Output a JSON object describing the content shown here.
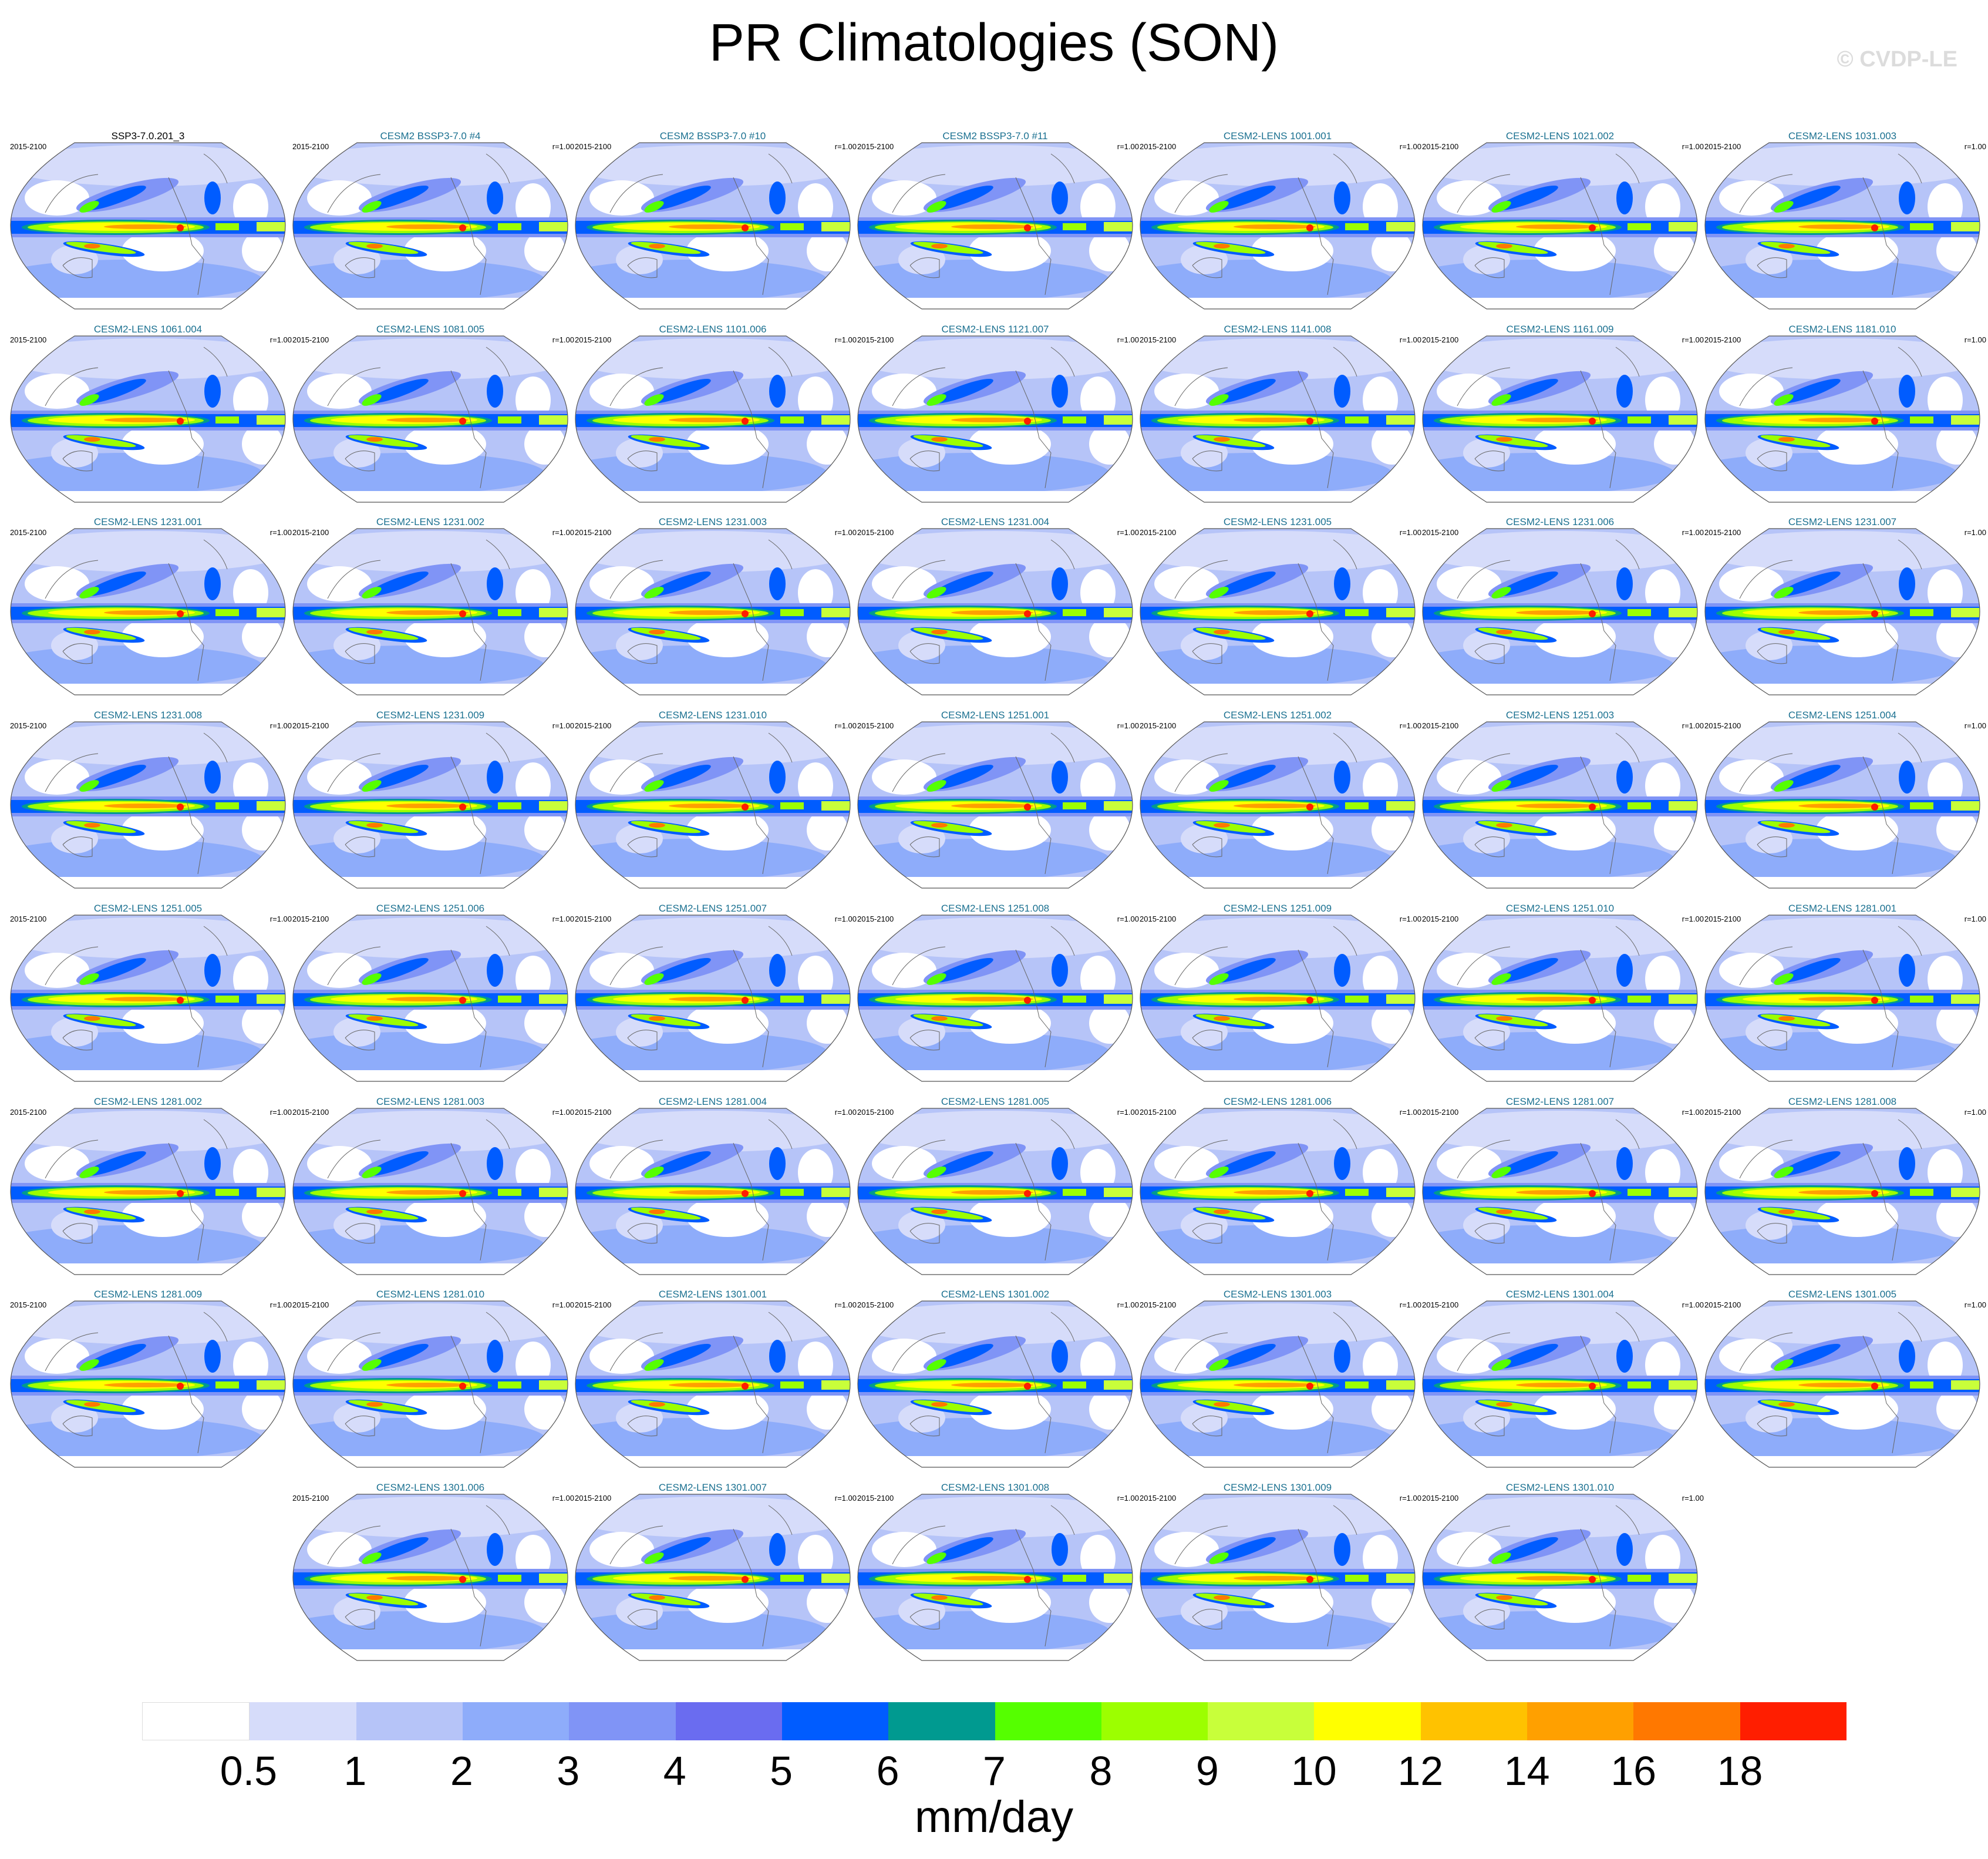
{
  "chart_data": {
    "type": "heatmap",
    "title": "PR Climatologies (SON)",
    "watermark": "© CVDP-LE",
    "period": "2015-2100",
    "units": "mm/day",
    "colorbar": {
      "levels": [
        "0.5",
        "1",
        "2",
        "3",
        "4",
        "5",
        "6",
        "7",
        "8",
        "9",
        "10",
        "12",
        "14",
        "16",
        "18"
      ],
      "colors": [
        "#ffffff",
        "#d6dcfa",
        "#b6c4f8",
        "#8eacfa",
        "#8094f6",
        "#6a6cf0",
        "#005cff",
        "#009a90",
        "#55ff00",
        "#9cff00",
        "#c8ff3a",
        "#ffff00",
        "#ffc200",
        "#ffa000",
        "#ff7800",
        "#ff1e00"
      ]
    },
    "panels": [
      {
        "title": "SSP3-7.0.201_3",
        "r": ""
      },
      {
        "title": "CESM2 BSSP3-7.0 #4",
        "r": "r=1.00"
      },
      {
        "title": "CESM2 BSSP3-7.0 #10",
        "r": "r=1.00"
      },
      {
        "title": "CESM2 BSSP3-7.0 #11",
        "r": "r=1.00"
      },
      {
        "title": "CESM2-LENS 1001.001",
        "r": "r=1.00"
      },
      {
        "title": "CESM2-LENS 1021.002",
        "r": "r=1.00"
      },
      {
        "title": "CESM2-LENS 1031.003",
        "r": "r=1.00"
      },
      {
        "title": "CESM2-LENS 1061.004",
        "r": "r=1.00"
      },
      {
        "title": "CESM2-LENS 1081.005",
        "r": "r=1.00"
      },
      {
        "title": "CESM2-LENS 1101.006",
        "r": "r=1.00"
      },
      {
        "title": "CESM2-LENS 1121.007",
        "r": "r=1.00"
      },
      {
        "title": "CESM2-LENS 1141.008",
        "r": "r=1.00"
      },
      {
        "title": "CESM2-LENS 1161.009",
        "r": "r=1.00"
      },
      {
        "title": "CESM2-LENS 1181.010",
        "r": "r=1.00"
      },
      {
        "title": "CESM2-LENS 1231.001",
        "r": "r=1.00"
      },
      {
        "title": "CESM2-LENS 1231.002",
        "r": "r=1.00"
      },
      {
        "title": "CESM2-LENS 1231.003",
        "r": "r=1.00"
      },
      {
        "title": "CESM2-LENS 1231.004",
        "r": "r=1.00"
      },
      {
        "title": "CESM2-LENS 1231.005",
        "r": "r=1.00"
      },
      {
        "title": "CESM2-LENS 1231.006",
        "r": "r=1.00"
      },
      {
        "title": "CESM2-LENS 1231.007",
        "r": "r=1.00"
      },
      {
        "title": "CESM2-LENS 1231.008",
        "r": "r=1.00"
      },
      {
        "title": "CESM2-LENS 1231.009",
        "r": "r=1.00"
      },
      {
        "title": "CESM2-LENS 1231.010",
        "r": "r=1.00"
      },
      {
        "title": "CESM2-LENS 1251.001",
        "r": "r=1.00"
      },
      {
        "title": "CESM2-LENS 1251.002",
        "r": "r=1.00"
      },
      {
        "title": "CESM2-LENS 1251.003",
        "r": "r=1.00"
      },
      {
        "title": "CESM2-LENS 1251.004",
        "r": "r=1.00"
      },
      {
        "title": "CESM2-LENS 1251.005",
        "r": "r=1.00"
      },
      {
        "title": "CESM2-LENS 1251.006",
        "r": "r=1.00"
      },
      {
        "title": "CESM2-LENS 1251.007",
        "r": "r=1.00"
      },
      {
        "title": "CESM2-LENS 1251.008",
        "r": "r=1.00"
      },
      {
        "title": "CESM2-LENS 1251.009",
        "r": "r=1.00"
      },
      {
        "title": "CESM2-LENS 1251.010",
        "r": "r=1.00"
      },
      {
        "title": "CESM2-LENS 1281.001",
        "r": "r=1.00"
      },
      {
        "title": "CESM2-LENS 1281.002",
        "r": "r=1.00"
      },
      {
        "title": "CESM2-LENS 1281.003",
        "r": "r=1.00"
      },
      {
        "title": "CESM2-LENS 1281.004",
        "r": "r=1.00"
      },
      {
        "title": "CESM2-LENS 1281.005",
        "r": "r=1.00"
      },
      {
        "title": "CESM2-LENS 1281.006",
        "r": "r=1.00"
      },
      {
        "title": "CESM2-LENS 1281.007",
        "r": "r=1.00"
      },
      {
        "title": "CESM2-LENS 1281.008",
        "r": "r=1.00"
      },
      {
        "title": "CESM2-LENS 1281.009",
        "r": "r=1.00"
      },
      {
        "title": "CESM2-LENS 1281.010",
        "r": "r=1.00"
      },
      {
        "title": "CESM2-LENS 1301.001",
        "r": "r=1.00"
      },
      {
        "title": "CESM2-LENS 1301.002",
        "r": "r=1.00"
      },
      {
        "title": "CESM2-LENS 1301.003",
        "r": "r=1.00"
      },
      {
        "title": "CESM2-LENS 1301.004",
        "r": "r=1.00"
      },
      {
        "title": "CESM2-LENS 1301.005",
        "r": "r=1.00"
      },
      {
        "title": "CESM2-LENS 1301.006",
        "r": "r=1.00"
      },
      {
        "title": "CESM2-LENS 1301.007",
        "r": "r=1.00"
      },
      {
        "title": "CESM2-LENS 1301.008",
        "r": "r=1.00"
      },
      {
        "title": "CESM2-LENS 1301.009",
        "r": "r=1.00"
      },
      {
        "title": "CESM2-LENS 1301.010",
        "r": "r=1.00"
      }
    ]
  }
}
